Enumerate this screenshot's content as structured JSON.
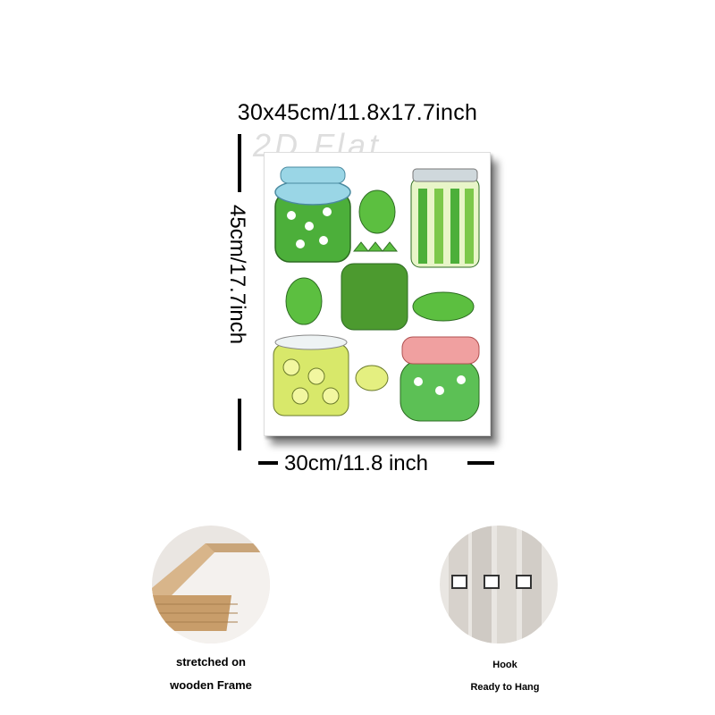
{
  "header": {
    "size_text": "30x45cm/11.8x17.7inch"
  },
  "dimensions": {
    "height_label": "45cm/17.7inch",
    "width_label": "30cm/11.8 inch"
  },
  "watermark": "2D Flat",
  "features": [
    {
      "line1": "stretched on",
      "line2": "wooden Frame",
      "icon": "wooden-frame-photo"
    },
    {
      "line1": "Hook",
      "line2": "Ready to Hang",
      "icon": "hook-photo"
    }
  ],
  "colors": {
    "jar_blue_lid": "#9ad6e6",
    "jar_pink_lid": "#f0a0a0",
    "pickle_green": "#4caf3a",
    "pickle_yellow": "#d8e86a"
  }
}
